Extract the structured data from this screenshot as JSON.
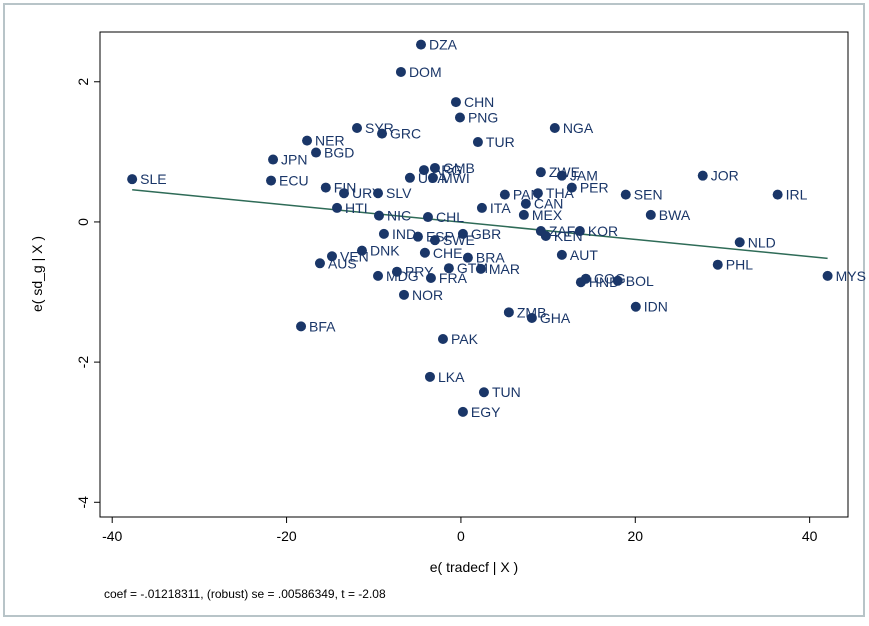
{
  "chart_data": {
    "type": "scatter",
    "xlabel": "e( tradecf | X )",
    "ylabel": "e( sd_g | X )",
    "note": "coef = -.01218311, (robust) se = .00586349, t = -2.08",
    "point_labels": [
      "DZA",
      "DOM",
      "CHN",
      "PNG",
      "SYR",
      "NGA",
      "GRC",
      "NER",
      "TUR",
      "BGD",
      "JPN",
      "SLE",
      "ECU",
      "ZWE",
      "JAM",
      "JOR",
      "PER",
      "IRL",
      "SEN",
      "BWA",
      "NLD",
      "PHL",
      "MYS",
      "IDN",
      "BOL",
      "COG",
      "HND",
      "AUT",
      "KOR",
      "KEN",
      "ZAF",
      "MEX",
      "CAN",
      "PAN",
      "THA",
      "ITA",
      "ZMB",
      "GHA",
      "TUN",
      "EGY",
      "LKA",
      "PAK",
      "BFA",
      "NOR",
      "FRA",
      "MDG",
      "PRY",
      "DNK",
      "VEN",
      "AUS",
      "CHE",
      "IND",
      "ESP",
      "SWE",
      "GBR",
      "BRA",
      "MAR",
      "GTM",
      "CHL",
      "NIC",
      "HTI",
      "SLV",
      "URY",
      "FIN",
      "ARG",
      "GMB",
      "MWI",
      "USA"
    ],
    "x": [
      -4.58,
      -6.88,
      -0.57,
      -0.11,
      -11.92,
      10.77,
      -9.05,
      -17.65,
      1.95,
      -16.62,
      -21.55,
      -37.71,
      -21.78,
      9.17,
      11.58,
      27.74,
      12.72,
      36.33,
      18.91,
      21.78,
      31.98,
      29.46,
      42.06,
      20.06,
      17.99,
      14.33,
      13.76,
      11.58,
      13.64,
      9.74,
      9.17,
      7.22,
      7.45,
      5.04,
      8.83,
      2.41,
      5.5,
      8.14,
      2.64,
      0.23,
      -3.55,
      -2.06,
      -18.34,
      -6.53,
      -3.44,
      -9.51,
      -7.34,
      -11.35,
      -14.79,
      -16.17,
      -4.13,
      -8.83,
      -4.93,
      -2.98,
      0.23,
      0.8,
      2.29,
      -1.38,
      -3.78,
      -9.4,
      -14.21,
      -9.51,
      -13.41,
      -15.5,
      -4.24,
      -2.98,
      -3.21,
      -5.85
    ],
    "values": [
      2.53,
      2.14,
      1.71,
      1.49,
      1.34,
      1.34,
      1.26,
      1.16,
      1.14,
      0.99,
      0.89,
      0.61,
      0.59,
      0.71,
      0.66,
      0.66,
      0.49,
      0.39,
      0.39,
      0.1,
      -0.29,
      -0.61,
      -0.77,
      -1.21,
      -0.84,
      -0.81,
      -0.86,
      -0.47,
      -0.13,
      -0.2,
      -0.13,
      0.1,
      0.26,
      0.39,
      0.41,
      0.2,
      -1.29,
      -1.37,
      -2.43,
      -2.71,
      -2.21,
      -1.67,
      -1.49,
      -1.04,
      -0.8,
      -0.77,
      -0.71,
      -0.41,
      -0.49,
      -0.59,
      -0.44,
      -0.17,
      -0.21,
      -0.26,
      -0.17,
      -0.51,
      -0.67,
      -0.66,
      0.07,
      0.09,
      0.2,
      0.41,
      0.41,
      0.49,
      0.74,
      0.77,
      0.63,
      0.63
    ],
    "color": "#1a3668",
    "fit_line": {
      "x": [
        -37.71,
        42.06
      ],
      "values": [
        0.46,
        -0.52
      ],
      "color": "#2e6b57"
    },
    "xlim": [
      -41.4,
      44.4
    ],
    "ylim": [
      -4.21,
      2.71
    ],
    "xticks": [
      -40,
      -20,
      0,
      20,
      40
    ],
    "yticks": [
      -4,
      -2,
      0,
      2
    ]
  }
}
